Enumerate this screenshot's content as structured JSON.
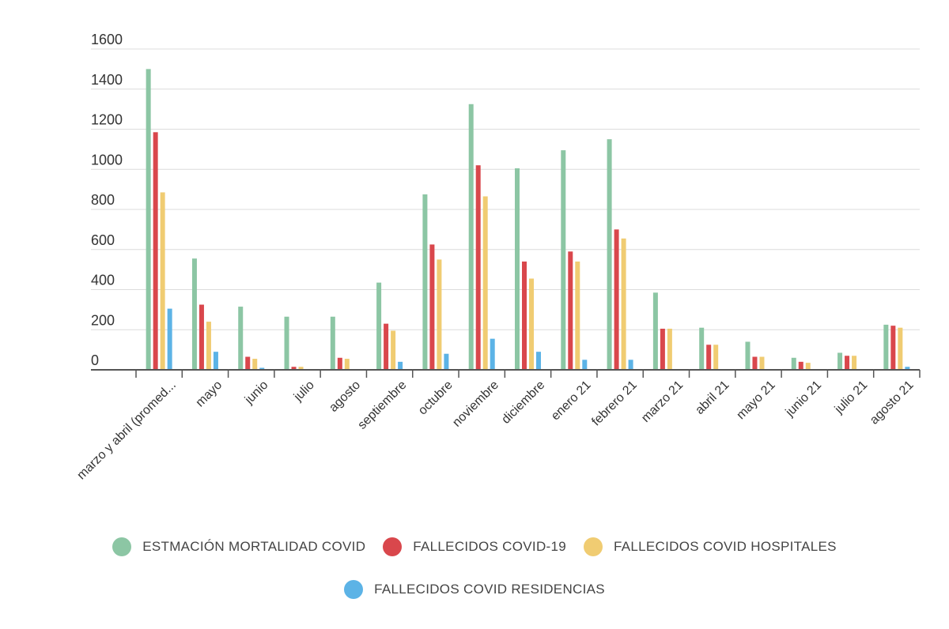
{
  "chart_data": {
    "type": "bar",
    "categories": [
      "marzo y abril (promed...",
      "mayo",
      "junio",
      "julio",
      "agosto",
      "septiembre",
      "octubre",
      "noviembre",
      "diciembre",
      "enero 21",
      "febrero 21",
      "marzo 21",
      "abril 21",
      "mayo 21",
      "junio 21",
      "julio 21",
      "agosto 21"
    ],
    "series": [
      {
        "name": "ESTMACIÓN MORTALIDAD COVID",
        "color": "#8cc6a4",
        "values": [
          1500,
          555,
          315,
          265,
          265,
          435,
          875,
          1325,
          1005,
          1095,
          1150,
          385,
          210,
          140,
          60,
          85,
          225
        ]
      },
      {
        "name": "FALLECIDOS COVID-19",
        "color": "#d9474c",
        "values": [
          1185,
          325,
          65,
          15,
          60,
          230,
          625,
          1020,
          540,
          590,
          700,
          205,
          125,
          65,
          40,
          70,
          220
        ]
      },
      {
        "name": "FALLECIDOS COVID HOSPITALES",
        "color": "#f0cc72",
        "values": [
          885,
          240,
          55,
          15,
          55,
          195,
          550,
          865,
          455,
          540,
          655,
          205,
          125,
          65,
          35,
          70,
          210
        ]
      },
      {
        "name": "FALLECIDOS COVID RESIDENCIAS",
        "color": "#5cb3e6",
        "values": [
          305,
          90,
          10,
          0,
          0,
          40,
          80,
          155,
          90,
          50,
          50,
          0,
          0,
          0,
          0,
          0,
          15
        ]
      }
    ],
    "y_ticks": [
      0,
      200,
      400,
      600,
      800,
      1000,
      1200,
      1400,
      1600
    ],
    "ylim": [
      0,
      1600
    ],
    "grid": true,
    "legend_position": "bottom"
  }
}
